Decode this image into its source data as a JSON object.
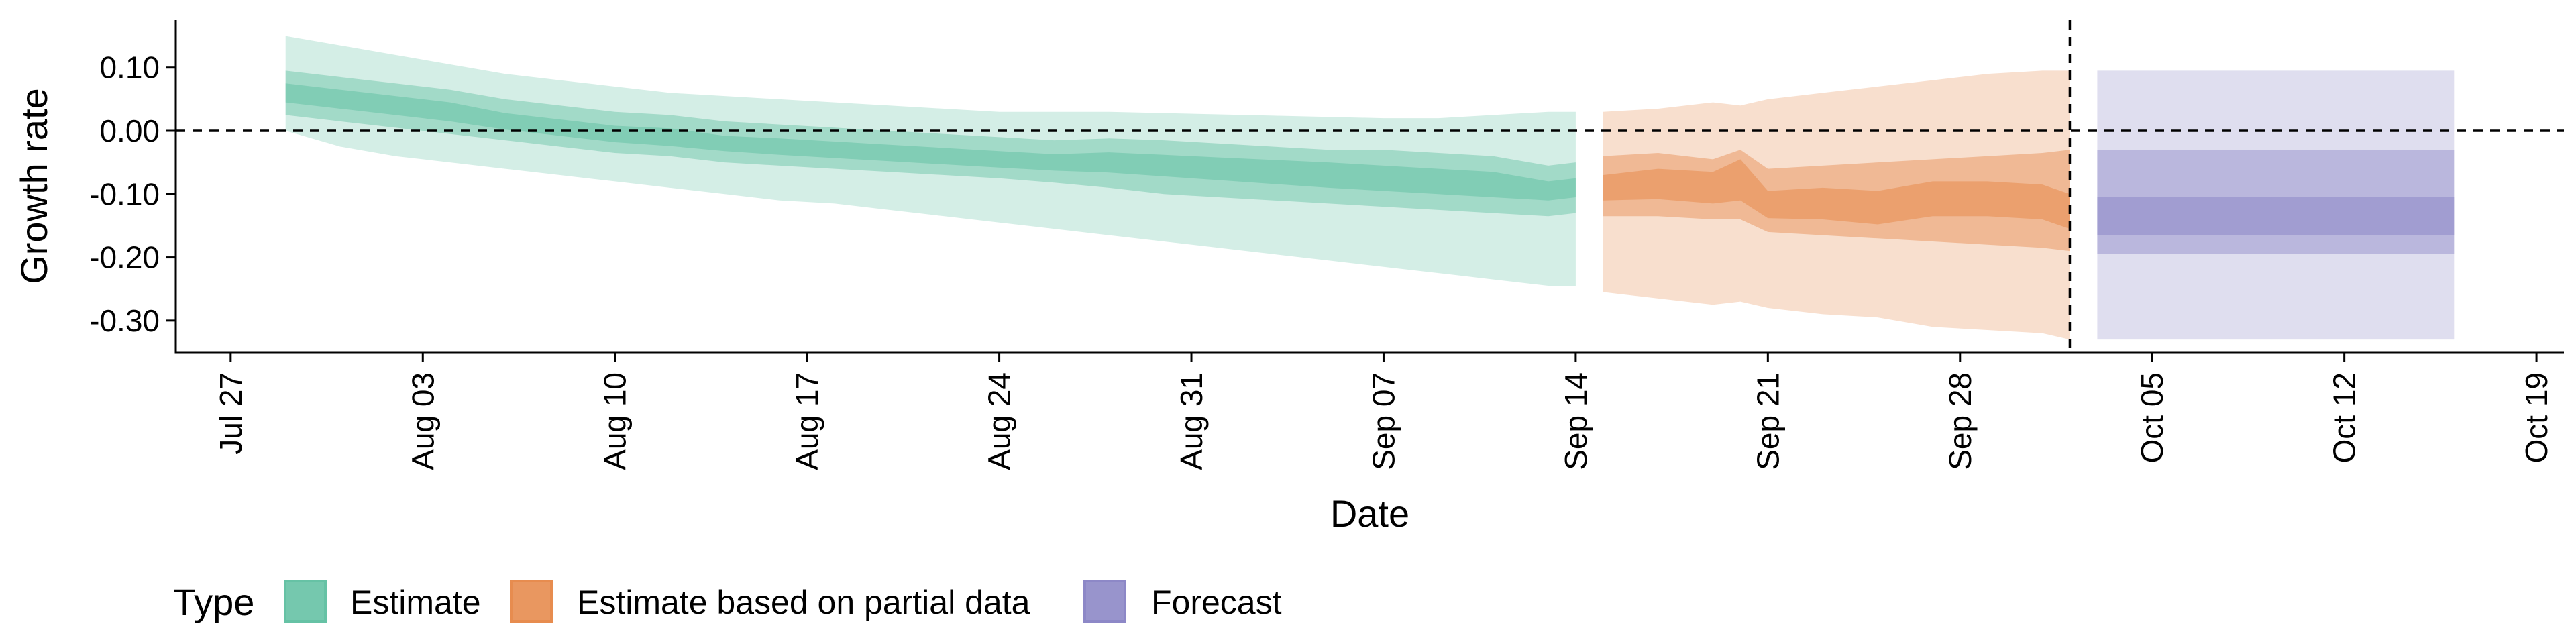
{
  "chart_data": {
    "type": "area",
    "xlabel": "Date",
    "ylabel": "Growth rate",
    "ylim": [
      -0.35,
      0.175
    ],
    "xlim": [
      "2020-07-25",
      "2020-10-20"
    ],
    "x_ticks": [
      "Jul 27",
      "Aug 03",
      "Aug 10",
      "Aug 17",
      "Aug 24",
      "Aug 31",
      "Sep 07",
      "Sep 14",
      "Sep 21",
      "Sep 28",
      "Oct 05",
      "Oct 12",
      "Oct 19"
    ],
    "x_tick_dates": [
      "2020-07-27",
      "2020-08-03",
      "2020-08-10",
      "2020-08-17",
      "2020-08-24",
      "2020-08-31",
      "2020-09-07",
      "2020-09-14",
      "2020-09-21",
      "2020-09-28",
      "2020-10-05",
      "2020-10-12",
      "2020-10-19"
    ],
    "y_ticks": [
      0.1,
      0.0,
      -0.1,
      -0.2,
      -0.3
    ],
    "y_tick_labels": [
      "0.10",
      "0.00",
      "-0.10",
      "-0.20",
      "-0.30"
    ],
    "hline": 0,
    "vline": "2020-10-02",
    "grid": false,
    "legend": {
      "title": "Type",
      "position": "bottom-left"
    },
    "series": [
      {
        "name": "Estimate",
        "color": "#66c2a5",
        "x": [
          "2020-07-29",
          "2020-07-31",
          "2020-08-02",
          "2020-08-04",
          "2020-08-06",
          "2020-08-08",
          "2020-08-10",
          "2020-08-12",
          "2020-08-14",
          "2020-08-16",
          "2020-08-18",
          "2020-08-20",
          "2020-08-22",
          "2020-08-24",
          "2020-08-26",
          "2020-08-28",
          "2020-08-30",
          "2020-09-01",
          "2020-09-03",
          "2020-09-05",
          "2020-09-07",
          "2020-09-09",
          "2020-09-11",
          "2020-09-13",
          "2020-09-14"
        ],
        "median": [
          0.06,
          0.05,
          0.04,
          0.03,
          0.015,
          0.005,
          -0.005,
          -0.01,
          -0.02,
          -0.025,
          -0.03,
          -0.035,
          -0.04,
          -0.045,
          -0.05,
          -0.05,
          -0.055,
          -0.06,
          -0.065,
          -0.07,
          -0.075,
          -0.08,
          -0.085,
          -0.095,
          -0.09
        ],
        "lower_20": [
          0.045,
          0.035,
          0.025,
          0.015,
          0.002,
          -0.008,
          -0.018,
          -0.024,
          -0.032,
          -0.038,
          -0.043,
          -0.048,
          -0.053,
          -0.058,
          -0.063,
          -0.066,
          -0.072,
          -0.078,
          -0.084,
          -0.09,
          -0.095,
          -0.1,
          -0.105,
          -0.11,
          -0.105
        ],
        "upper_20": [
          0.075,
          0.065,
          0.055,
          0.045,
          0.028,
          0.018,
          0.008,
          0.004,
          -0.008,
          -0.012,
          -0.017,
          -0.022,
          -0.027,
          -0.032,
          -0.037,
          -0.034,
          -0.038,
          -0.042,
          -0.046,
          -0.05,
          -0.055,
          -0.06,
          -0.065,
          -0.08,
          -0.075
        ],
        "lower_50": [
          0.025,
          0.015,
          0.005,
          -0.005,
          -0.015,
          -0.025,
          -0.035,
          -0.04,
          -0.05,
          -0.055,
          -0.06,
          -0.065,
          -0.07,
          -0.075,
          -0.082,
          -0.09,
          -0.1,
          -0.105,
          -0.11,
          -0.115,
          -0.12,
          -0.125,
          -0.13,
          -0.135,
          -0.13
        ],
        "upper_50": [
          0.095,
          0.085,
          0.075,
          0.065,
          0.05,
          0.04,
          0.03,
          0.025,
          0.015,
          0.01,
          0.005,
          0.0,
          -0.005,
          -0.01,
          -0.015,
          -0.012,
          -0.015,
          -0.02,
          -0.025,
          -0.03,
          -0.03,
          -0.035,
          -0.04,
          -0.055,
          -0.05
        ],
        "lower_90": [
          0.0,
          -0.025,
          -0.04,
          -0.05,
          -0.06,
          -0.07,
          -0.08,
          -0.09,
          -0.1,
          -0.11,
          -0.115,
          -0.125,
          -0.135,
          -0.145,
          -0.155,
          -0.165,
          -0.175,
          -0.185,
          -0.195,
          -0.205,
          -0.215,
          -0.225,
          -0.235,
          -0.245,
          -0.245
        ],
        "upper_90": [
          0.15,
          0.135,
          0.12,
          0.105,
          0.09,
          0.08,
          0.07,
          0.06,
          0.055,
          0.05,
          0.045,
          0.04,
          0.035,
          0.03,
          0.03,
          0.03,
          0.028,
          0.026,
          0.024,
          0.022,
          0.02,
          0.02,
          0.025,
          0.03,
          0.03
        ]
      },
      {
        "name": "Estimate based on partial data",
        "color": "#e78c4f",
        "x": [
          "2020-09-15",
          "2020-09-17",
          "2020-09-19",
          "2020-09-20",
          "2020-09-21",
          "2020-09-23",
          "2020-09-25",
          "2020-09-27",
          "2020-09-29",
          "2020-10-01",
          "2020-10-02"
        ],
        "median": [
          -0.09,
          -0.085,
          -0.09,
          -0.085,
          -0.115,
          -0.115,
          -0.12,
          -0.11,
          -0.11,
          -0.115,
          -0.13
        ],
        "lower_20": [
          -0.11,
          -0.108,
          -0.115,
          -0.11,
          -0.138,
          -0.14,
          -0.148,
          -0.135,
          -0.135,
          -0.14,
          -0.155
        ],
        "upper_20": [
          -0.07,
          -0.06,
          -0.065,
          -0.045,
          -0.095,
          -0.09,
          -0.095,
          -0.08,
          -0.08,
          -0.085,
          -0.1
        ],
        "lower_50": [
          -0.135,
          -0.135,
          -0.14,
          -0.14,
          -0.16,
          -0.165,
          -0.17,
          -0.175,
          -0.18,
          -0.185,
          -0.19
        ],
        "upper_50": [
          -0.04,
          -0.035,
          -0.045,
          -0.03,
          -0.06,
          -0.055,
          -0.05,
          -0.045,
          -0.04,
          -0.035,
          -0.03
        ],
        "lower_90": [
          -0.255,
          -0.265,
          -0.275,
          -0.27,
          -0.28,
          -0.29,
          -0.295,
          -0.31,
          -0.315,
          -0.32,
          -0.33
        ],
        "upper_90": [
          0.03,
          0.035,
          0.045,
          0.04,
          0.05,
          0.06,
          0.07,
          0.08,
          0.09,
          0.095,
          0.095
        ]
      },
      {
        "name": "Forecast",
        "color": "#8d88c7",
        "x": [
          "2020-10-03",
          "2020-10-16"
        ],
        "median": [
          -0.15,
          -0.15
        ],
        "lower_20": [
          -0.165,
          -0.165
        ],
        "upper_20": [
          -0.105,
          -0.105
        ],
        "lower_50": [
          -0.195,
          -0.195
        ],
        "upper_50": [
          -0.03,
          -0.03
        ],
        "lower_90": [
          -0.33,
          -0.33
        ],
        "upper_90": [
          0.095,
          0.095
        ]
      }
    ]
  }
}
